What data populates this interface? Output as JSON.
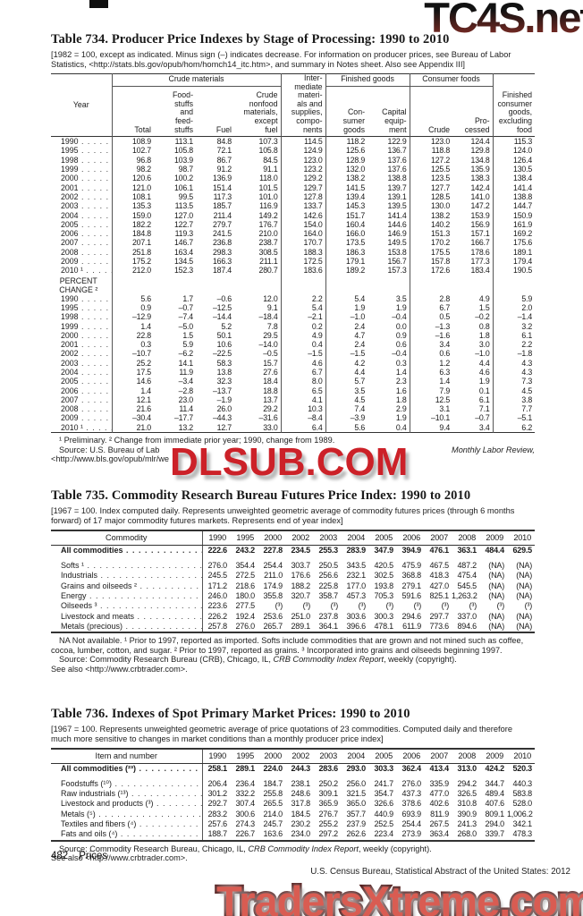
{
  "watermarks": {
    "top": "TC4S.net",
    "middle": "DLSUB.COM",
    "bottom": "TradersXtreme.com",
    "colors": {
      "top_dark": "#241616",
      "top_red": "#8d2f27",
      "red": "#cc2128",
      "bottom_fill": "#d95c52",
      "bottom_outline": "#47100f"
    }
  },
  "table734": {
    "title": "Table 734. Producer Price Indexes by Stage of Processing: 1990 to 2010",
    "headnote": "[1982 = 100, except as indicated. Minus sign (–) indicates decrease. For information on producer prices, see Bureau of Labor Statistics, <http://stats.bls.gov/opub/hom/homch14_itc.htm>, and summary in Notes sheet. Also see Appendix III]",
    "header": {
      "year": "Year",
      "crude_materials": "Crude materials",
      "col_total": "Total",
      "col_foodstuffs": "Food-\nstuffs\nand\nfeed-\nstuffs",
      "col_fuel": "Fuel",
      "col_nonfood": "Crude\nnonfood\nmaterials,\nexcept\nfuel",
      "intermediate": "Inter-\nmediate\nmateri-\nals and\nsupplies,\ncompo-\nnents",
      "finished_goods": "Finished goods",
      "col_consumer_goods": "Con-\nsumer\ngoods",
      "col_capital": "Capital\nequip-\nment",
      "consumer_foods": "Consumer foods",
      "col_crude": "Crude",
      "col_processed": "Pro-\ncessed",
      "finished_excl_food": "Finished\nconsumer\ngoods,\nexcluding\nfood"
    },
    "index_rows": [
      {
        "label": "1990",
        "values": [
          "108.9",
          "113.1",
          "84.8",
          "107.3",
          "114.5",
          "118.2",
          "122.9",
          "123.0",
          "124.4",
          "115.3"
        ]
      },
      {
        "label": "1995",
        "values": [
          "102.7",
          "105.8",
          "72.1",
          "105.8",
          "124.9",
          "125.6",
          "136.7",
          "118.8",
          "129.8",
          "124.0"
        ]
      },
      {
        "label": "1998",
        "values": [
          "96.8",
          "103.9",
          "86.7",
          "84.5",
          "123.0",
          "128.9",
          "137.6",
          "127.2",
          "134.8",
          "126.4"
        ]
      },
      {
        "label": "1999",
        "values": [
          "98.2",
          "98.7",
          "91.2",
          "91.1",
          "123.2",
          "132.0",
          "137.6",
          "125.5",
          "135.9",
          "130.5"
        ]
      },
      {
        "label": "2000",
        "values": [
          "120.6",
          "100.2",
          "136.9",
          "118.0",
          "129.2",
          "138.2",
          "138.8",
          "123.5",
          "138.3",
          "138.4"
        ]
      },
      {
        "label": "2001",
        "values": [
          "121.0",
          "106.1",
          "151.4",
          "101.5",
          "129.7",
          "141.5",
          "139.7",
          "127.7",
          "142.4",
          "141.4"
        ]
      },
      {
        "label": "2002",
        "values": [
          "108.1",
          "99.5",
          "117.3",
          "101.0",
          "127.8",
          "139.4",
          "139.1",
          "128.5",
          "141.0",
          "138.8"
        ]
      },
      {
        "label": "2003",
        "values": [
          "135.3",
          "113.5",
          "185.7",
          "116.9",
          "133.7",
          "145.3",
          "139.5",
          "130.0",
          "147.2",
          "144.7"
        ]
      },
      {
        "label": "2004",
        "values": [
          "159.0",
          "127.0",
          "211.4",
          "149.2",
          "142.6",
          "151.7",
          "141.4",
          "138.2",
          "153.9",
          "150.9"
        ]
      },
      {
        "label": "2005",
        "values": [
          "182.2",
          "122.7",
          "279.7",
          "176.7",
          "154.0",
          "160.4",
          "144.6",
          "140.2",
          "156.9",
          "161.9"
        ]
      },
      {
        "label": "2006",
        "values": [
          "184.8",
          "119.3",
          "241.5",
          "210.0",
          "164.0",
          "166.0",
          "146.9",
          "151.3",
          "157.1",
          "169.2"
        ]
      },
      {
        "label": "2007",
        "values": [
          "207.1",
          "146.7",
          "236.8",
          "238.7",
          "170.7",
          "173.5",
          "149.5",
          "170.2",
          "166.7",
          "175.6"
        ]
      },
      {
        "label": "2008",
        "values": [
          "251.8",
          "163.4",
          "298.3",
          "308.5",
          "188.3",
          "186.3",
          "153.8",
          "175.5",
          "178.6",
          "189.1"
        ]
      },
      {
        "label": "2009",
        "values": [
          "175.2",
          "134.5",
          "166.3",
          "211.1",
          "172.5",
          "179.1",
          "156.7",
          "157.8",
          "177.3",
          "179.4"
        ]
      },
      {
        "label": "2010 ¹",
        "values": [
          "212.0",
          "152.3",
          "187.4",
          "280.7",
          "183.6",
          "189.2",
          "157.3",
          "172.6",
          "183.4",
          "190.5"
        ]
      }
    ],
    "percent_heading": "PERCENT\nCHANGE ²",
    "percent_rows": [
      {
        "label": "1990",
        "values": [
          "5.6",
          "1.7",
          "–0.6",
          "12.0",
          "2.2",
          "5.4",
          "3.5",
          "2.8",
          "4.9",
          "5.9"
        ]
      },
      {
        "label": "1995",
        "values": [
          "0.9",
          "–0.7",
          "–12.5",
          "9.1",
          "5.4",
          "1.9",
          "1.9",
          "6.7",
          "1.5",
          "2.0"
        ]
      },
      {
        "label": "1998",
        "values": [
          "–12.9",
          "–7.4",
          "–14.4",
          "–18.4",
          "–2.1",
          "–1.0",
          "–0.4",
          "0.5",
          "–0.2",
          "–1.4"
        ]
      },
      {
        "label": "1999",
        "values": [
          "1.4",
          "–5.0",
          "5.2",
          "7.8",
          "0.2",
          "2.4",
          "0.0",
          "–1.3",
          "0.8",
          "3.2"
        ]
      },
      {
        "label": "2000",
        "values": [
          "22.8",
          "1.5",
          "50.1",
          "29.5",
          "4.9",
          "4.7",
          "0.9",
          "–1.6",
          "1.8",
          "6.1"
        ]
      },
      {
        "label": "2001",
        "values": [
          "0.3",
          "5.9",
          "10.6",
          "–14.0",
          "0.4",
          "2.4",
          "0.6",
          "3.4",
          "3.0",
          "2.2"
        ]
      },
      {
        "label": "2002",
        "values": [
          "–10.7",
          "–6.2",
          "–22.5",
          "–0.5",
          "–1.5",
          "–1.5",
          "–0.4",
          "0.6",
          "–1.0",
          "–1.8"
        ]
      },
      {
        "label": "2003",
        "values": [
          "25.2",
          "14.1",
          "58.3",
          "15.7",
          "4.6",
          "4.2",
          "0.3",
          "1.2",
          "4.4",
          "4.3"
        ]
      },
      {
        "label": "2004",
        "values": [
          "17.5",
          "11.9",
          "13.8",
          "27.6",
          "6.7",
          "4.4",
          "1.4",
          "6.3",
          "4.6",
          "4.3"
        ]
      },
      {
        "label": "2005",
        "values": [
          "14.6",
          "–3.4",
          "32.3",
          "18.4",
          "8.0",
          "5.7",
          "2.3",
          "1.4",
          "1.9",
          "7.3"
        ]
      },
      {
        "label": "2006",
        "values": [
          "1.4",
          "–2.8",
          "–13.7",
          "18.8",
          "6.5",
          "3.5",
          "1.6",
          "7.9",
          "0.1",
          "4.5"
        ]
      },
      {
        "label": "2007",
        "values": [
          "12.1",
          "23.0",
          "–1.9",
          "13.7",
          "4.1",
          "4.5",
          "1.8",
          "12.5",
          "6.1",
          "3.8"
        ]
      },
      {
        "label": "2008",
        "values": [
          "21.6",
          "11.4",
          "26.0",
          "29.2",
          "10.3",
          "7.4",
          "2.9",
          "3.1",
          "7.1",
          "7.7"
        ]
      },
      {
        "label": "2009",
        "values": [
          "–30.4",
          "–17.7",
          "–44.3",
          "–31.6",
          "–8.4",
          "–3.9",
          "1.9",
          "–10.1",
          "–0.7",
          "–5.1"
        ]
      },
      {
        "label": "2010 ¹",
        "values": [
          "21.0",
          "13.2",
          "12.7",
          "33.0",
          "6.4",
          "5.6",
          "0.4",
          "9.4",
          "3.4",
          "6.2"
        ]
      }
    ],
    "footnote": "¹ Preliminary. ² Change from immediate prior year; 1990, change from 1989.",
    "source_left": "Source: U.S. Bureau of Lab",
    "source_right_italic": "Monthly Labor Review,",
    "source_line3": "<http://www.bls.gov/opub/mlr/we"
  },
  "table735": {
    "title": "Table 735. Commodity Research Bureau Futures Price Index: 1990 to 2010",
    "headnote": "[1967 = 100. Index computed daily. Represents unweighted geometric average of commodity futures prices (through 6 months forward) of 17 major commodity futures markets. Represents end of year index]",
    "columns": [
      "Commodity",
      "1990",
      "1995",
      "2000",
      "2002",
      "2003",
      "2004",
      "2005",
      "2006",
      "2007",
      "2008",
      "2009",
      "2010"
    ],
    "rows": [
      {
        "label": "All commodities",
        "bold": true,
        "values": [
          "222.6",
          "243.2",
          "227.8",
          "234.5",
          "255.3",
          "283.9",
          "347.9",
          "394.9",
          "476.1",
          "363.1",
          "484.4",
          "629.5"
        ]
      },
      {
        "label": "Softs ¹",
        "bold": false,
        "values": [
          "276.0",
          "354.4",
          "254.4",
          "303.7",
          "250.5",
          "343.5",
          "420.5",
          "475.9",
          "467.5",
          "487.2",
          "(NA)",
          "(NA)"
        ]
      },
      {
        "label": "Industrials",
        "bold": false,
        "values": [
          "245.5",
          "272.5",
          "211.0",
          "176.6",
          "256.6",
          "232.1",
          "302.5",
          "368.8",
          "418.3",
          "475.4",
          "(NA)",
          "(NA)"
        ]
      },
      {
        "label": "Grains and oilseeds ²",
        "bold": false,
        "values": [
          "171.2",
          "218.6",
          "174.9",
          "188.2",
          "225.8",
          "177.0",
          "193.8",
          "279.1",
          "427.0",
          "545.5",
          "(NA)",
          "(NA)"
        ]
      },
      {
        "label": "Energy",
        "bold": false,
        "values": [
          "246.0",
          "180.0",
          "355.8",
          "320.7",
          "358.7",
          "457.3",
          "705.3",
          "591.6",
          "825.1",
          "1,263.2",
          "(NA)",
          "(NA)"
        ]
      },
      {
        "label": "Oilseeds ³",
        "bold": false,
        "values": [
          "223.6",
          "277.5",
          "(³)",
          "(³)",
          "(³)",
          "(³)",
          "(³)",
          "(³)",
          "(³)",
          "(³)",
          "(³)",
          "(³)"
        ]
      },
      {
        "label": "Livestock and meats",
        "bold": false,
        "values": [
          "226.2",
          "192.4",
          "253.6",
          "251.0",
          "237.8",
          "303.6",
          "300.3",
          "294.6",
          "297.7",
          "337.0",
          "(NA)",
          "(NA)"
        ]
      },
      {
        "label": "Metals (precious)",
        "bold": false,
        "values": [
          "257.8",
          "276.0",
          "265.7",
          "289.1",
          "364.1",
          "396.6",
          "478.1",
          "611.9",
          "773.6",
          "894.6",
          "(NA)",
          "(NA)"
        ]
      }
    ],
    "footnote_na": "NA Not available. ¹ Prior to 1997, reported as imported. Softs include commodities that are grown and not mined such as coffee, cocoa, lumber, cotton, and sugar. ² Prior to 1997, reported as grains. ³ Incorporated into grains and oilseeds beginning 1997.",
    "source_pre": "Source: Commodity Research Bureau (CRB), Chicago, IL, ",
    "source_italic": "CRB Commodity Index Report",
    "source_post": ", weekly (copyright).",
    "see_also": "See also <http://www.crbtrader.com>."
  },
  "table736": {
    "title": "Table 736. Indexes of Spot Primary Market Prices: 1990 to 2010",
    "headnote": "[1967 = 100. Represents unweighted geometric average of price quotations of 23 commodities. Computed daily and therefore much more sensitive to changes in market conditions than a monthly producer price index]",
    "columns": [
      "Item and number",
      "1990",
      "1995",
      "2000",
      "2002",
      "2003",
      "2004",
      "2005",
      "2006",
      "2007",
      "2008",
      "2009",
      "2010"
    ],
    "rows": [
      {
        "label": "All commodities (²³)",
        "bold": true,
        "values": [
          "258.1",
          "289.1",
          "224.0",
          "244.3",
          "283.6",
          "293.0",
          "303.3",
          "362.4",
          "413.4",
          "313.0",
          "424.2",
          "520.3"
        ]
      },
      {
        "label": "Foodstuffs (¹⁰)",
        "bold": false,
        "values": [
          "206.4",
          "236.4",
          "184.7",
          "238.1",
          "250.2",
          "256.0",
          "241.7",
          "276.0",
          "335.9",
          "294.2",
          "344.7",
          "440.3"
        ]
      },
      {
        "label": "Raw industrials (¹³)",
        "bold": false,
        "values": [
          "301.2",
          "332.2",
          "255.8",
          "248.6",
          "309.1",
          "321.5",
          "354.7",
          "437.3",
          "477.0",
          "326.5",
          "489.4",
          "583.8"
        ]
      },
      {
        "label": "Livestock and products (³)",
        "bold": false,
        "values": [
          "292.7",
          "307.4",
          "265.5",
          "317.8",
          "365.9",
          "365.0",
          "326.6",
          "378.6",
          "402.6",
          "310.8",
          "407.6",
          "528.0"
        ]
      },
      {
        "label": "Metals (⁵)",
        "bold": false,
        "values": [
          "283.2",
          "300.6",
          "214.0",
          "184.5",
          "276.7",
          "357.7",
          "440.9",
          "693.9",
          "811.9",
          "390.9",
          "809.1",
          "1,006.2"
        ]
      },
      {
        "label": "Textiles and fibers (⁴)",
        "bold": false,
        "values": [
          "257.6",
          "274.3",
          "245.7",
          "230.2",
          "255.2",
          "237.9",
          "252.5",
          "254.4",
          "267.5",
          "241.3",
          "294.0",
          "342.1"
        ]
      },
      {
        "label": "Fats and oils (⁴)",
        "bold": false,
        "values": [
          "188.7",
          "226.7",
          "163.6",
          "234.0",
          "297.2",
          "262.6",
          "223.4",
          "273.9",
          "363.4",
          "268.0",
          "339.7",
          "478.3"
        ]
      }
    ],
    "source_pre": "Source: Commodity Research Bureau, Chicago, IL, ",
    "source_italic": "CRB Commodity Index Report",
    "source_post": ", weekly (copyright).",
    "see_also": "See also <http://www.crbtrader.com>."
  },
  "footer": {
    "page_number": "482",
    "section": "Prices",
    "credit": "U.S. Census Bureau, Statistical Abstract of the United States: 2012"
  }
}
